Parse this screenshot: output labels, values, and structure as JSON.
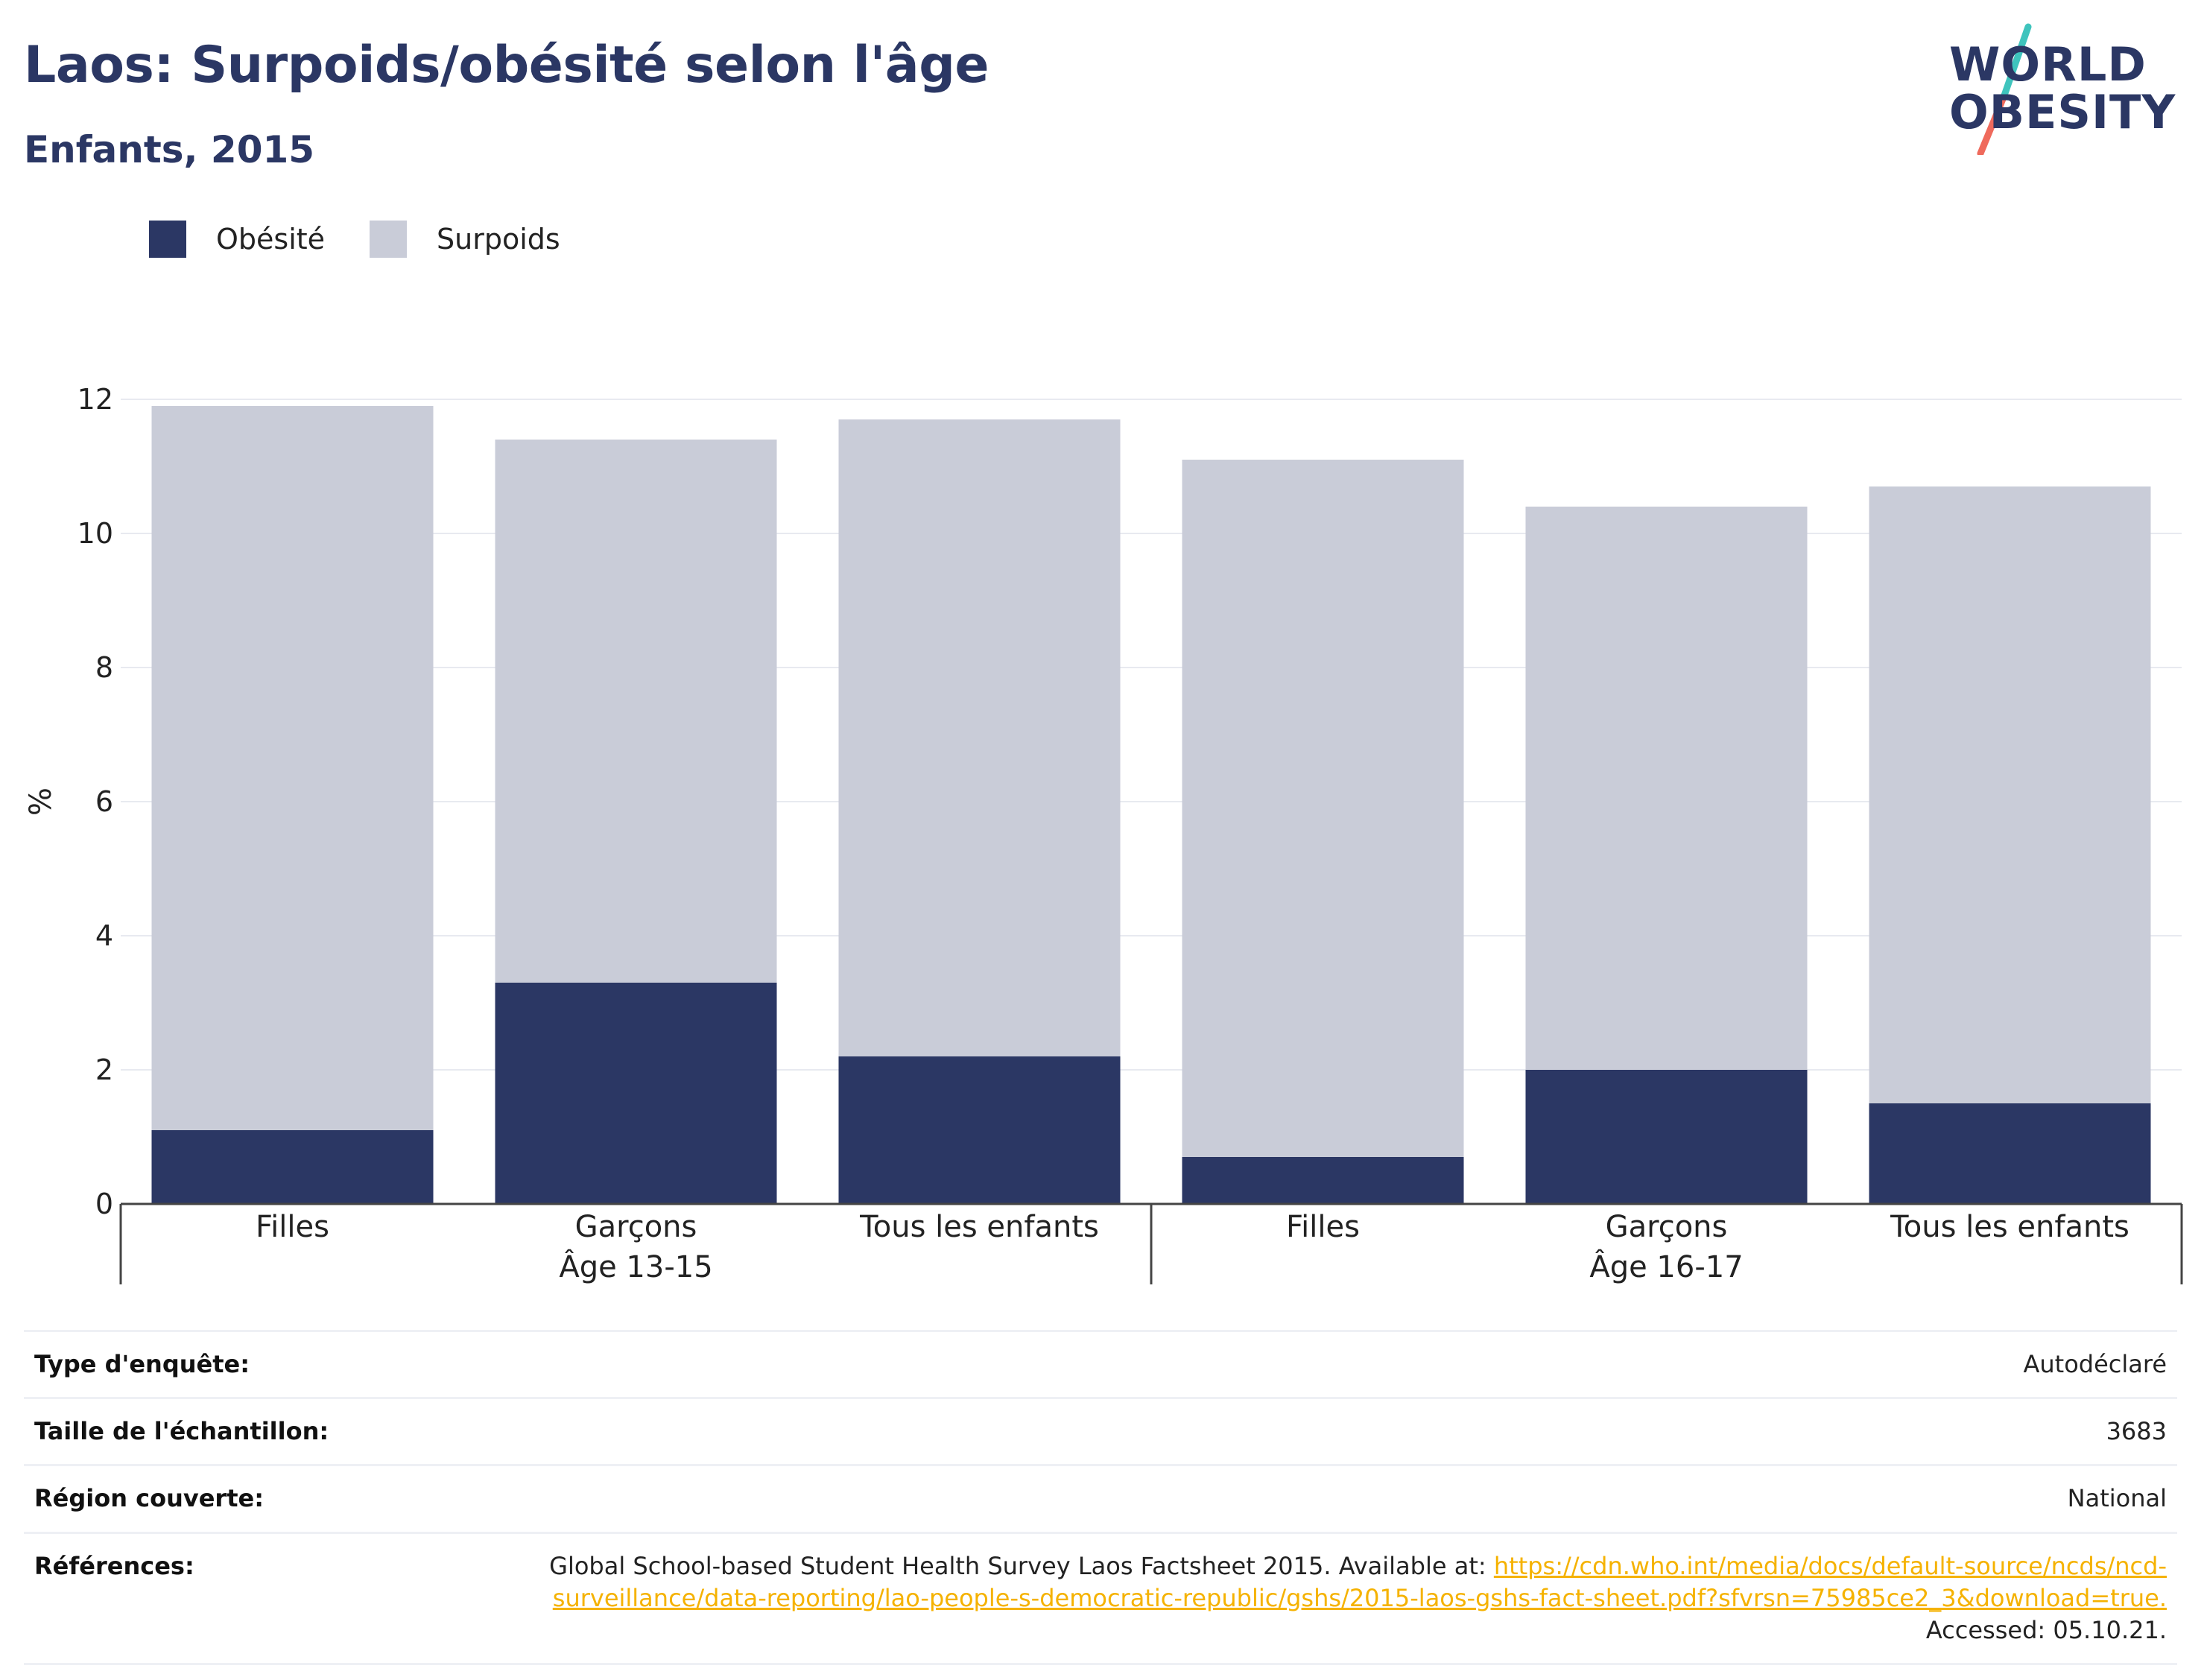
{
  "header": {
    "title": "Laos: Surpoids/obésité selon l'âge",
    "subtitle": "Enfants, 2015"
  },
  "logo": {
    "line1": "WORLD",
    "line2": "OBESITY"
  },
  "legend": [
    {
      "label": "Obésité",
      "color": "#2b3764"
    },
    {
      "label": "Surpoids",
      "color": "#c9ccd8"
    }
  ],
  "chart_data": {
    "type": "bar",
    "stacked": true,
    "ylabel": "%",
    "ylim": [
      0,
      12
    ],
    "yticks": [
      0,
      2,
      4,
      6,
      8,
      10,
      12
    ],
    "grid": true,
    "legend_position": "top-left",
    "categories": [
      "Filles",
      "Garçons",
      "Tous les enfants",
      "Filles",
      "Garçons",
      "Tous les enfants"
    ],
    "groups": [
      {
        "label": "Âge 13-15",
        "categories": [
          0,
          1,
          2
        ]
      },
      {
        "label": "Âge 16-17",
        "categories": [
          3,
          4,
          5
        ]
      }
    ],
    "series": [
      {
        "name": "Obésité",
        "color": "#2b3764",
        "values": [
          1.1,
          3.3,
          2.2,
          0.7,
          2.0,
          1.5
        ]
      },
      {
        "name": "Surpoids",
        "color": "#c9ccd8",
        "values": [
          10.8,
          8.1,
          9.5,
          10.4,
          8.4,
          9.2
        ]
      }
    ]
  },
  "info": [
    {
      "label": "Type d'enquête:",
      "value": "Autodéclaré"
    },
    {
      "label": "Taille de l'échantillon:",
      "value": "3683"
    },
    {
      "label": "Région couverte:",
      "value": "National"
    }
  ],
  "references": {
    "label": "Références:",
    "text_before": "Global School-based Student Health Survey Laos Factsheet 2015. Available at: ",
    "link": "https://cdn.who.int/media/docs/default-source/ncds/ncd-surveillance/data-reporting/lao-people-s-democratic-republic/gshs/2015-laos-gshs-fact-sheet.pdf?sfvrsn=75985ce2_3&download=true.",
    "text_after": " Accessed: 05.10.21."
  }
}
